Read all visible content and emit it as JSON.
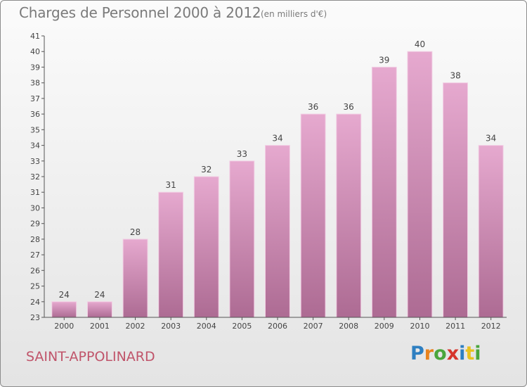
{
  "header": {
    "title": "Charges de Personnel 2000 à 2012",
    "subtitle": "(en milliers d'€)"
  },
  "footer": {
    "commune": "SAINT-APPOLINARD",
    "logo": {
      "text": "Proxiti",
      "letters": [
        "P",
        "r",
        "o",
        "x",
        "i",
        "t",
        "i"
      ],
      "colors": [
        "#2e7fc1",
        "#e8831e",
        "#4aa63c",
        "#d6352b",
        "#2e7fc1",
        "#e8c21e",
        "#4aa63c"
      ]
    }
  },
  "chart_data": {
    "type": "bar",
    "categories": [
      "2000",
      "2001",
      "2002",
      "2003",
      "2004",
      "2005",
      "2006",
      "2007",
      "2008",
      "2009",
      "2010",
      "2011",
      "2012"
    ],
    "values": [
      24,
      24,
      28,
      31,
      32,
      33,
      34,
      36,
      36,
      39,
      40,
      38,
      34
    ],
    "data_labels": [
      "24",
      "24",
      "28",
      "31",
      "32",
      "33",
      "34",
      "36",
      "36",
      "39",
      "40",
      "38",
      "34"
    ],
    "title": "Charges de Personnel 2000 à 2012",
    "xlabel": "",
    "ylabel": "",
    "ylim": [
      23,
      41
    ],
    "yticks": [
      "23",
      "24",
      "25",
      "26",
      "27",
      "28",
      "29",
      "30",
      "31",
      "32",
      "33",
      "34",
      "35",
      "36",
      "37",
      "38",
      "39",
      "40",
      "41"
    ],
    "grid": false,
    "colors": {
      "bar_top": "#e6a9cf",
      "bar_bottom": "#ad6b93",
      "bar_edge": "#f2cfe4",
      "axis": "#555555",
      "text": "#444444"
    }
  }
}
